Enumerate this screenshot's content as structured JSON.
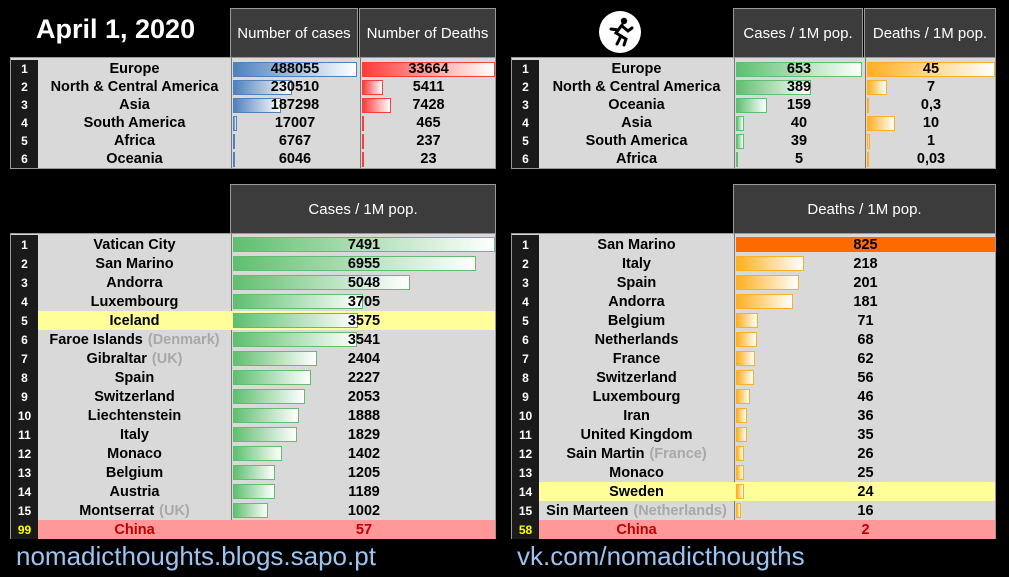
{
  "title": "April 1, 2020",
  "logo_icon": "running-figure-icon",
  "footer_left": "nomadicthoughts.blogs.sapo.pt",
  "footer_right": "vk.com/nomadicthougths",
  "colors": {
    "blue": "#4f81bd",
    "red": "#ff3b3b",
    "green": "#5fbf6f",
    "orange": "#ffb020",
    "deep_orange": "#ff6a00",
    "highlight": "#ffff99",
    "china": "#ff9999"
  },
  "chart_data": [
    {
      "type": "bar",
      "id": "continents-absolute",
      "categories": [
        "Europe",
        "North & Central America",
        "Asia",
        "South America",
        "Africa",
        "Oceania"
      ],
      "series": [
        {
          "name": "Number of cases",
          "values": [
            488055,
            230510,
            187298,
            17007,
            6767,
            6046
          ]
        },
        {
          "name": "Number of Deaths",
          "values": [
            33664,
            5411,
            7428,
            465,
            237,
            23
          ]
        }
      ]
    },
    {
      "type": "bar",
      "id": "continents-per-million",
      "categories": [
        "Europe",
        "North & Central America",
        "Oceania",
        "Asia",
        "South America",
        "Africa"
      ],
      "series": [
        {
          "name": "Cases / 1M pop.",
          "values": [
            653,
            389,
            159,
            40,
            39,
            5
          ],
          "labels": [
            "653",
            "389",
            "159",
            "40",
            "39",
            "5"
          ]
        },
        {
          "name": "Deaths / 1M pop.",
          "values": [
            45,
            7,
            0.3,
            10,
            1,
            0.03
          ],
          "labels": [
            "45",
            "7",
            "0,3",
            "10",
            "1",
            "0,03"
          ]
        }
      ]
    },
    {
      "type": "bar",
      "id": "countries-cases",
      "title": "Cases / 1M pop.",
      "ranks": [
        "1",
        "2",
        "3",
        "4",
        "5",
        "6",
        "7",
        "8",
        "9",
        "10",
        "11",
        "12",
        "13",
        "14",
        "15",
        "99"
      ],
      "categories": [
        "Vatican City",
        "San Marino",
        "Andorra",
        "Luxembourg",
        "Iceland",
        "Faroe Islands",
        "Gibraltar",
        "Spain",
        "Switzerland",
        "Liechtenstein",
        "Italy",
        "Monaco",
        "Belgium",
        "Austria",
        "Montserrat",
        "China"
      ],
      "qualifiers": [
        "",
        "",
        "",
        "",
        "",
        "(Denmark)",
        "(UK)",
        "",
        "",
        "",
        "",
        "",
        "",
        "",
        "(UK)",
        ""
      ],
      "values": [
        7491,
        6955,
        5048,
        3705,
        3575,
        3541,
        2404,
        2227,
        2053,
        1888,
        1829,
        1402,
        1205,
        1189,
        1002,
        57
      ]
    },
    {
      "type": "bar",
      "id": "countries-deaths",
      "title": "Deaths / 1M pop.",
      "ranks": [
        "1",
        "2",
        "3",
        "4",
        "5",
        "6",
        "7",
        "8",
        "9",
        "10",
        "11",
        "12",
        "13",
        "14",
        "15",
        "58"
      ],
      "categories": [
        "San Marino",
        "Italy",
        "Spain",
        "Andorra",
        "Belgium",
        "Netherlands",
        "France",
        "Switzerland",
        "Luxembourg",
        "Iran",
        "United Kingdom",
        "Sain Martin",
        "Monaco",
        "Sweden",
        "Sin Marteen",
        "China"
      ],
      "qualifiers": [
        "",
        "",
        "",
        "",
        "",
        "",
        "",
        "",
        "",
        "",
        "",
        "(France)",
        "",
        "",
        "(Netherlands)",
        ""
      ],
      "values": [
        825,
        218,
        201,
        181,
        71,
        68,
        62,
        56,
        46,
        36,
        35,
        26,
        25,
        24,
        16,
        2
      ]
    }
  ]
}
